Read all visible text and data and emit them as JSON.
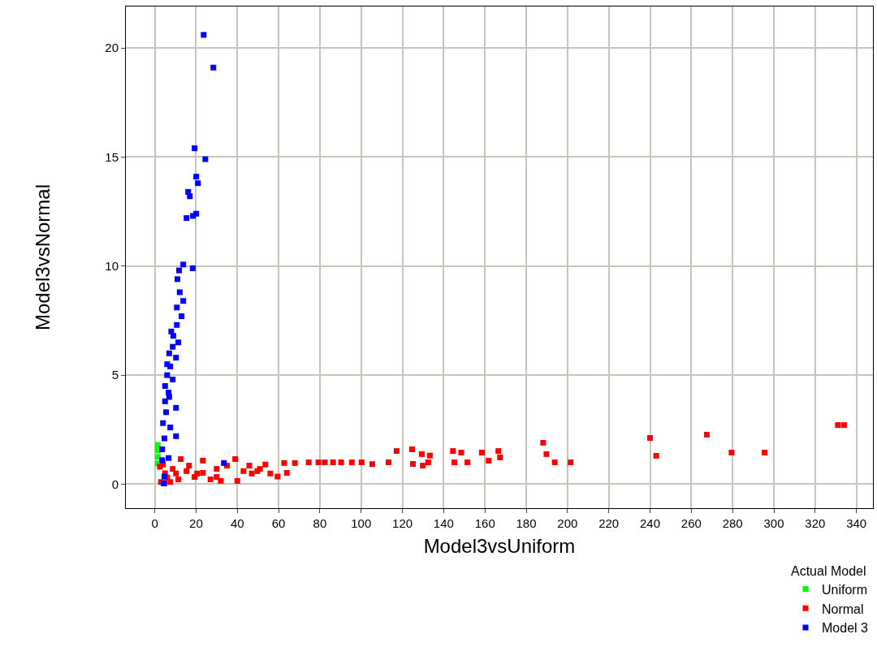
{
  "chart_data": {
    "type": "scatter",
    "xlabel": "Model3vsUniform",
    "ylabel": "Model3vsNormal",
    "legend_title": "Actual Model",
    "legend": "bottom right",
    "marker": "square",
    "grid": true,
    "xlim": [
      -14,
      348
    ],
    "xticks": [
      0,
      20,
      40,
      60,
      80,
      100,
      120,
      140,
      160,
      180,
      200,
      220,
      240,
      260,
      280,
      300,
      320,
      340
    ],
    "ylim": [
      -1.1,
      21.9
    ],
    "yticks": [
      0,
      5,
      10,
      15,
      20
    ],
    "series": [
      {
        "name": "Uniform",
        "color": "#00ff00",
        "x": [
          1.5,
          1.5,
          1.5,
          1.5
        ],
        "values": [
          0.95,
          1.25,
          1.55,
          1.8
        ]
      },
      {
        "name": "Normal",
        "color": "#ff0000",
        "x": [
          62.7,
          67.9,
          74.6,
          79.3,
          82.4,
          86.4,
          90.3,
          95.5,
          100.2,
          105.4,
          113.3,
          117.2,
          124.7,
          125.1,
          129.4,
          129.9,
          132.5,
          133.3,
          144.5,
          145.2,
          148.5,
          151.5,
          158.5,
          161.8,
          166.5,
          167.3,
          188.2,
          189.8,
          193.8,
          201.5,
          240,
          243,
          267.5,
          279.5,
          295.5,
          331,
          334,
          64,
          59.5,
          56,
          49.7,
          40,
          32,
          27,
          19.3,
          11.4,
          7.5,
          4.7,
          15.4,
          23.3,
          30,
          43,
          39,
          12.6,
          23.3,
          45.8,
          53.6,
          35,
          16.6,
          8.7,
          10.3,
          20.5,
          30,
          47,
          51,
          3,
          5,
          2.5,
          6,
          4
        ],
        "values": [
          0.97,
          0.97,
          1.0,
          1.0,
          1.0,
          1.0,
          1.0,
          1.0,
          1.0,
          0.92,
          1.0,
          1.52,
          1.6,
          0.93,
          1.38,
          0.85,
          1.0,
          1.31,
          1.52,
          1.0,
          1.45,
          1.0,
          1.45,
          1.08,
          1.52,
          1.23,
          1.9,
          1.38,
          1.0,
          1.0,
          2.12,
          1.3,
          2.27,
          1.45,
          1.45,
          2.71,
          2.71,
          0.52,
          0.35,
          0.49,
          0.6,
          0.15,
          0.15,
          0.22,
          0.33,
          0.22,
          0.1,
          0.04,
          0.6,
          0.52,
          0.7,
          0.6,
          1.15,
          1.15,
          1.08,
          0.85,
          0.9,
          0.85,
          0.85,
          0.7,
          0.49,
          0.49,
          0.33,
          0.49,
          0.7,
          0.1,
          0.5,
          0.8,
          0.3,
          0.9
        ]
      },
      {
        "name": "Model 3",
        "color": "#0000ff",
        "x": [
          23.7,
          28.4,
          19.3,
          24.5,
          20.1,
          20.9,
          16.2,
          17.0,
          15.4,
          18.5,
          20.1,
          13.8,
          11.8,
          18.4,
          11.0,
          12.1,
          13.8,
          10.7,
          13.0,
          10.7,
          11.4,
          8.7,
          10.3,
          7.5,
          8.7,
          6.7,
          10.3,
          5.5,
          7.5,
          10.3,
          4.7,
          3.6,
          6.7,
          3.6,
          4.7,
          4.3,
          33.5,
          6,
          7,
          5,
          8,
          6,
          5,
          4,
          7,
          9
        ],
        "values": [
          20.6,
          19.1,
          15.4,
          14.9,
          14.1,
          13.8,
          13.4,
          13.2,
          12.2,
          12.3,
          12.4,
          10.07,
          9.8,
          9.9,
          9.4,
          8.8,
          8.4,
          8.1,
          7.7,
          7.3,
          6.5,
          6.3,
          5.8,
          5.4,
          4.8,
          4.2,
          3.5,
          3.3,
          2.6,
          2.2,
          2.1,
          1.6,
          1.2,
          1.1,
          0.35,
          0.04,
          0.97,
          5.0,
          6.0,
          4.5,
          7.0,
          5.5,
          3.8,
          2.8,
          4.0,
          6.8
        ]
      }
    ]
  }
}
